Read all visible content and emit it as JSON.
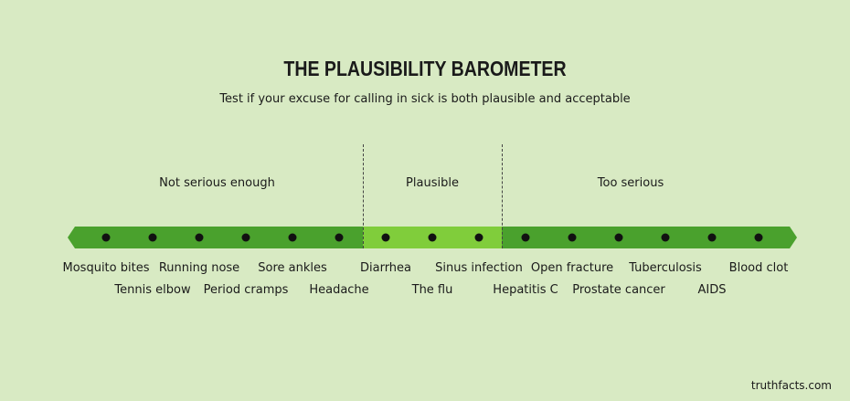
{
  "title": "THE PLAUSIBILITY BAROMETER",
  "subtitle": "Test if your excuse for calling in sick is both plausible and acceptable",
  "zones": [
    {
      "label": "Not serious enough",
      "color": "#4aa12d"
    },
    {
      "label": "Plausible",
      "color": "#80cd3b"
    },
    {
      "label": "Too serious",
      "color": "#4aa12d"
    }
  ],
  "items": [
    "Mosquito bites",
    "Tennis elbow",
    "Running nose",
    "Period cramps",
    "Sore ankles",
    "Headache",
    "Diarrhea",
    "The flu",
    "Sinus infection",
    "Hepatitis C",
    "Open fracture",
    "Prostate cancer",
    "Tuberculosis",
    "AIDS",
    "Blood clot"
  ],
  "credit": "truthfacts.com"
}
